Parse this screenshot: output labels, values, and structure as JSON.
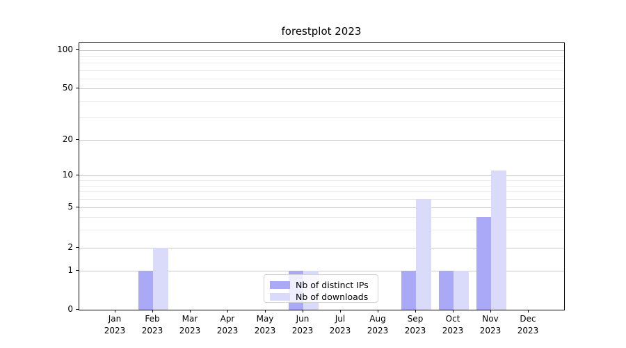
{
  "title": "forestplot 2023",
  "chart_data": {
    "type": "bar",
    "title": "forestplot 2023",
    "categories": [
      "Jan",
      "Feb",
      "Mar",
      "Apr",
      "May",
      "Jun",
      "Jul",
      "Aug",
      "Sep",
      "Oct",
      "Nov",
      "Dec"
    ],
    "category_year": "2023",
    "series": [
      {
        "name": "Nb of distinct IPs",
        "color": "#a9a9f7",
        "values": [
          0,
          1,
          0,
          0,
          0,
          1,
          0,
          0,
          1,
          1,
          4,
          0
        ]
      },
      {
        "name": "Nb of downloads",
        "color": "#dadafb",
        "values": [
          0,
          2,
          0,
          0,
          0,
          1,
          0,
          0,
          6,
          1,
          11,
          0
        ]
      }
    ],
    "xlabel": "",
    "ylabel": "",
    "y_scale": "symlog",
    "ylim": [
      0,
      114
    ],
    "y_major_ticks": [
      0,
      1,
      2,
      5,
      10,
      20,
      50,
      100
    ],
    "y_minor_gridlines": [
      3,
      4,
      6,
      7,
      8,
      9,
      30,
      40,
      60,
      70,
      80,
      90
    ],
    "grid": "on",
    "legend_position": "lower center inside"
  },
  "colors": {
    "series1": "#a9a9f7",
    "series2": "#dadafb",
    "grid_major": "#c9c9c9",
    "grid_minor": "#ebebeb",
    "spine": "#000000",
    "background": "#ffffff"
  }
}
